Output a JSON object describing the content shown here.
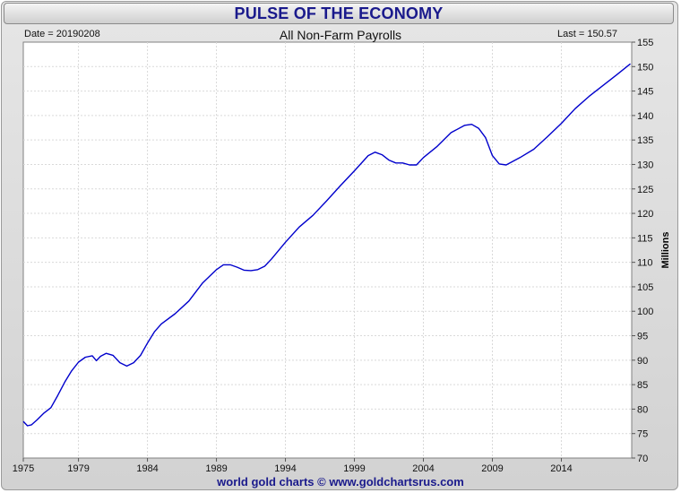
{
  "header": {
    "title": "PULSE OF THE ECONOMY",
    "date_label": "Date = 20190208",
    "subtitle": "All Non-Farm Payrolls",
    "last_label": "Last = 150.57"
  },
  "footer": {
    "credit": "world gold charts © www.goldchartsrus.com"
  },
  "colors": {
    "line": "#0000cc",
    "title": "#1a1a8c",
    "grid": "#d9d9d9"
  },
  "chart_data": {
    "type": "line",
    "title": "All Non-Farm Payrolls",
    "xlabel": "",
    "ylabel": "Millions",
    "xlim": [
      1975.0,
      2019.1
    ],
    "ylim": [
      70,
      155
    ],
    "x_ticks": [
      "1975",
      "1979",
      "1984",
      "1989",
      "1994",
      "1999",
      "2004",
      "2009",
      "2014"
    ],
    "y_ticks": [
      "70",
      "75",
      "80",
      "85",
      "90",
      "95",
      "100",
      "105",
      "110",
      "115",
      "120",
      "125",
      "130",
      "135",
      "140",
      "145",
      "150",
      "155"
    ],
    "grid": true,
    "series": [
      {
        "x": [
          1975.0,
          1975.3,
          1975.6,
          1976.0,
          1976.5,
          1977.0,
          1977.5,
          1978.0,
          1978.5,
          1979.0,
          1979.5,
          1980.0,
          1980.3,
          1980.6,
          1981.0,
          1981.5,
          1982.0,
          1982.5,
          1983.0,
          1983.5,
          1984.0,
          1984.5,
          1985.0,
          1986.0,
          1987.0,
          1988.0,
          1989.0,
          1989.5,
          1990.0,
          1990.5,
          1991.0,
          1991.5,
          1992.0,
          1992.5,
          1993.0,
          1994.0,
          1995.0,
          1996.0,
          1997.0,
          1998.0,
          1999.0,
          2000.0,
          2000.5,
          2001.0,
          2001.5,
          2002.0,
          2002.5,
          2003.0,
          2003.5,
          2004.0,
          2005.0,
          2006.0,
          2007.0,
          2007.5,
          2008.0,
          2008.5,
          2009.0,
          2009.5,
          2010.0,
          2011.0,
          2012.0,
          2013.0,
          2014.0,
          2015.0,
          2016.0,
          2017.0,
          2018.0,
          2019.0
        ],
        "y": [
          77.5,
          76.6,
          76.8,
          77.8,
          79.2,
          80.3,
          82.8,
          85.5,
          87.8,
          89.6,
          90.6,
          90.9,
          89.9,
          90.8,
          91.4,
          91.0,
          89.5,
          88.8,
          89.5,
          91.0,
          93.5,
          95.8,
          97.4,
          99.5,
          102.1,
          105.8,
          108.5,
          109.5,
          109.5,
          109.0,
          108.4,
          108.3,
          108.5,
          109.2,
          110.7,
          114.1,
          117.2,
          119.6,
          122.6,
          125.7,
          128.7,
          131.8,
          132.5,
          132.0,
          130.9,
          130.3,
          130.3,
          129.9,
          129.9,
          131.4,
          133.7,
          136.5,
          138.0,
          138.2,
          137.4,
          135.5,
          131.8,
          130.1,
          129.9,
          131.4,
          133.1,
          135.7,
          138.4,
          141.4,
          143.9,
          146.1,
          148.3,
          150.57
        ]
      }
    ]
  }
}
